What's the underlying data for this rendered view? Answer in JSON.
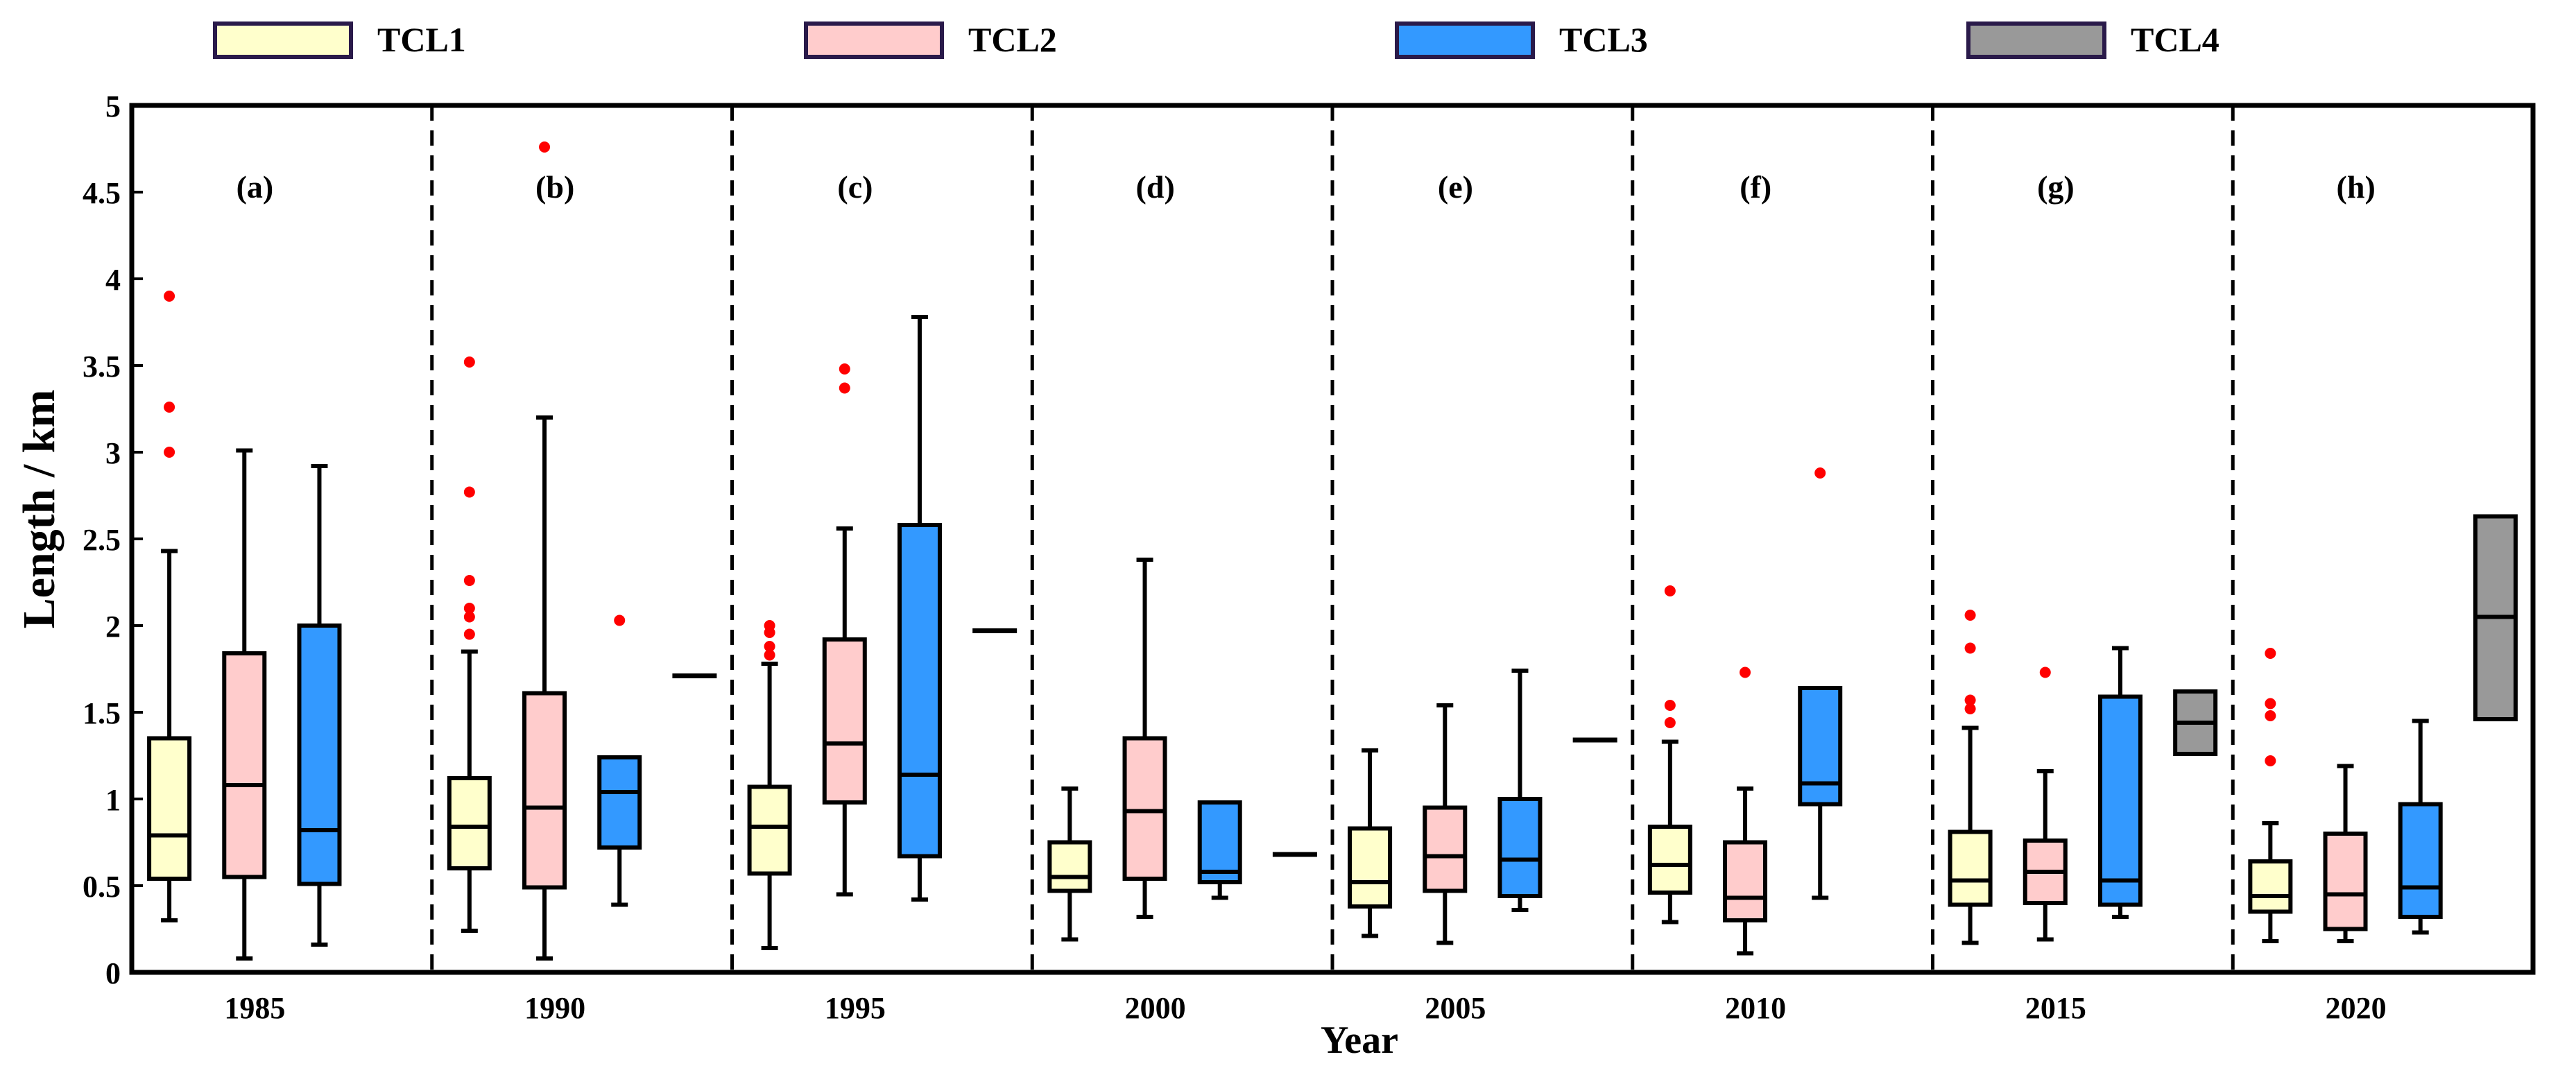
{
  "chart_data": {
    "type": "box",
    "ylabel": "Length / km",
    "xlabel": "Year",
    "ylim": [
      0,
      5
    ],
    "yticks": [
      "0",
      "0.5",
      "1",
      "1.5",
      "2",
      "2.5",
      "3",
      "3.5",
      "4",
      "4.5",
      "5"
    ],
    "legend_position": "top",
    "series": [
      {
        "name": "TCL1",
        "color": "#ffffcc"
      },
      {
        "name": "TCL2",
        "color": "#ffcccc"
      },
      {
        "name": "TCL3",
        "color": "#3399ff"
      },
      {
        "name": "TCL4",
        "color": "#999999"
      }
    ],
    "panels": [
      {
        "label": "(a)",
        "year": "1985",
        "boxes": [
          {
            "series": "TCL1",
            "min": 0.3,
            "q1": 0.54,
            "median": 0.79,
            "q3": 1.35,
            "max": 2.43,
            "outliers": [
              3.0,
              3.26,
              3.9
            ]
          },
          {
            "series": "TCL2",
            "min": 0.08,
            "q1": 0.55,
            "median": 1.08,
            "q3": 1.84,
            "max": 3.01,
            "outliers": []
          },
          {
            "series": "TCL3",
            "min": 0.16,
            "q1": 0.51,
            "median": 0.82,
            "q3": 2.0,
            "max": 2.92,
            "outliers": []
          },
          {
            "series": "TCL4",
            "single": 0.0
          }
        ]
      },
      {
        "label": "(b)",
        "year": "1990",
        "boxes": [
          {
            "series": "TCL1",
            "min": 0.24,
            "q1": 0.6,
            "median": 0.84,
            "q3": 1.12,
            "max": 1.85,
            "outliers": [
              1.95,
              2.05,
              2.1,
              2.26,
              2.77,
              3.52
            ]
          },
          {
            "series": "TCL2",
            "min": 0.08,
            "q1": 0.49,
            "median": 0.95,
            "q3": 1.61,
            "max": 3.2,
            "outliers": [
              4.76
            ]
          },
          {
            "series": "TCL3",
            "min": 0.39,
            "q1": 0.72,
            "median": 1.04,
            "q3": 1.24,
            "max": 1.24,
            "outliers": [
              2.03
            ]
          },
          {
            "series": "TCL4",
            "single": 1.71
          }
        ]
      },
      {
        "label": "(c)",
        "year": "1995",
        "boxes": [
          {
            "series": "TCL1",
            "min": 0.14,
            "q1": 0.57,
            "median": 0.84,
            "q3": 1.07,
            "max": 1.78,
            "outliers": [
              1.83,
              1.88,
              1.96,
              2.0
            ]
          },
          {
            "series": "TCL2",
            "min": 0.45,
            "q1": 0.98,
            "median": 1.32,
            "q3": 1.92,
            "max": 2.56,
            "outliers": [
              3.37,
              3.48
            ]
          },
          {
            "series": "TCL3",
            "min": 0.42,
            "q1": 0.67,
            "median": 1.14,
            "q3": 2.58,
            "max": 3.78,
            "outliers": []
          },
          {
            "series": "TCL4",
            "single": 1.97
          }
        ]
      },
      {
        "label": "(d)",
        "year": "2000",
        "boxes": [
          {
            "series": "TCL1",
            "min": 0.19,
            "q1": 0.47,
            "median": 0.55,
            "q3": 0.75,
            "max": 1.06,
            "outliers": []
          },
          {
            "series": "TCL2",
            "min": 0.32,
            "q1": 0.54,
            "median": 0.93,
            "q3": 1.35,
            "max": 2.38,
            "outliers": []
          },
          {
            "series": "TCL3",
            "min": 0.43,
            "q1": 0.52,
            "median": 0.58,
            "q3": 0.98,
            "max": 0.98,
            "outliers": []
          },
          {
            "series": "TCL4",
            "single": 0.68
          }
        ]
      },
      {
        "label": "(e)",
        "year": "2005",
        "boxes": [
          {
            "series": "TCL1",
            "min": 0.21,
            "q1": 0.38,
            "median": 0.52,
            "q3": 0.83,
            "max": 1.28,
            "outliers": []
          },
          {
            "series": "TCL2",
            "min": 0.17,
            "q1": 0.47,
            "median": 0.67,
            "q3": 0.95,
            "max": 1.54,
            "outliers": []
          },
          {
            "series": "TCL3",
            "min": 0.36,
            "q1": 0.44,
            "median": 0.65,
            "q3": 1.0,
            "max": 1.74,
            "outliers": []
          },
          {
            "series": "TCL4",
            "single": 1.34
          }
        ]
      },
      {
        "label": "(f)",
        "year": "2010",
        "boxes": [
          {
            "series": "TCL1",
            "min": 0.29,
            "q1": 0.46,
            "median": 0.62,
            "q3": 0.84,
            "max": 1.33,
            "outliers": [
              1.44,
              1.54,
              2.2
            ]
          },
          {
            "series": "TCL2",
            "min": 0.11,
            "q1": 0.3,
            "median": 0.43,
            "q3": 0.75,
            "max": 1.06,
            "outliers": [
              1.73
            ]
          },
          {
            "series": "TCL3",
            "min": 0.43,
            "q1": 0.97,
            "median": 1.09,
            "q3": 1.64,
            "max": 1.64,
            "outliers": [
              2.88
            ]
          },
          {
            "series": "TCL4",
            "single": 0.0
          }
        ]
      },
      {
        "label": "(g)",
        "year": "2015",
        "boxes": [
          {
            "series": "TCL1",
            "min": 0.17,
            "q1": 0.39,
            "median": 0.53,
            "q3": 0.81,
            "max": 1.41,
            "outliers": [
              1.52,
              1.57,
              1.87,
              2.06
            ]
          },
          {
            "series": "TCL2",
            "min": 0.19,
            "q1": 0.4,
            "median": 0.58,
            "q3": 0.76,
            "max": 1.16,
            "outliers": [
              1.73
            ]
          },
          {
            "series": "TCL3",
            "min": 0.32,
            "q1": 0.39,
            "median": 0.53,
            "q3": 1.59,
            "max": 1.87,
            "outliers": []
          },
          {
            "series": "TCL4",
            "min": 1.26,
            "q1": 1.26,
            "median": 1.44,
            "q3": 1.62,
            "max": 1.62,
            "outliers": []
          }
        ]
      },
      {
        "label": "(h)",
        "year": "2020",
        "boxes": [
          {
            "series": "TCL1",
            "min": 0.18,
            "q1": 0.35,
            "median": 0.44,
            "q3": 0.64,
            "max": 0.86,
            "outliers": [
              1.22,
              1.48,
              1.55,
              1.84
            ]
          },
          {
            "series": "TCL2",
            "min": 0.18,
            "q1": 0.25,
            "median": 0.45,
            "q3": 0.8,
            "max": 1.19,
            "outliers": []
          },
          {
            "series": "TCL3",
            "min": 0.23,
            "q1": 0.32,
            "median": 0.49,
            "q3": 0.97,
            "max": 1.45,
            "outliers": []
          },
          {
            "series": "TCL4",
            "min": 1.46,
            "q1": 1.46,
            "median": 2.05,
            "q3": 2.63,
            "max": 2.63,
            "outliers": []
          }
        ]
      }
    ]
  }
}
